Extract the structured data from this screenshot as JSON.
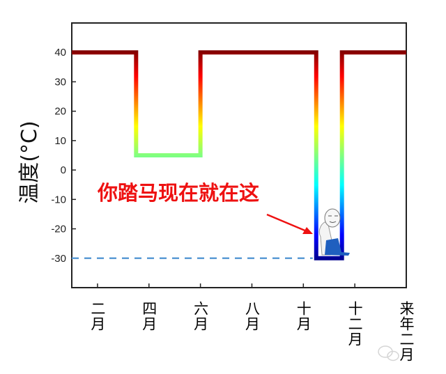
{
  "chart_data": {
    "type": "line",
    "title": "",
    "xlabel": "",
    "ylabel": "温度(°C)",
    "xlim": [
      1,
      14
    ],
    "ylim": [
      -40,
      50
    ],
    "x_ticks": [
      2,
      4,
      6,
      8,
      10,
      12,
      14
    ],
    "x_tick_labels": [
      "二月",
      "四月",
      "六月",
      "八月",
      "十月",
      "十二月",
      "来年二月"
    ],
    "y_ticks": [
      40,
      30,
      20,
      10,
      0,
      -10,
      -20,
      -30
    ],
    "y_tick_labels": [
      "40",
      "30",
      "20",
      "10",
      "0",
      "-10",
      "-20",
      "-30"
    ],
    "grid": false,
    "colormap": "jet",
    "series": [
      {
        "x": [
          1,
          3.5,
          3.5,
          6,
          6,
          10.5,
          10.5,
          11.5,
          11.5,
          14
        ],
        "y": [
          40,
          40,
          5,
          5,
          40,
          40,
          -30,
          -30,
          40,
          40
        ]
      }
    ],
    "reference_line": {
      "y": -30,
      "x_range": [
        1,
        10.5
      ],
      "style": "dashed",
      "color": "#5b9bd5"
    },
    "annotation": {
      "text": "你踏马现在就在这",
      "color": "#ee1111",
      "arrow_to": {
        "x": 10.3,
        "y": -22
      }
    },
    "colors": {
      "high": "#800000",
      "mid": "#80ff80",
      "low": "#00008b"
    }
  }
}
